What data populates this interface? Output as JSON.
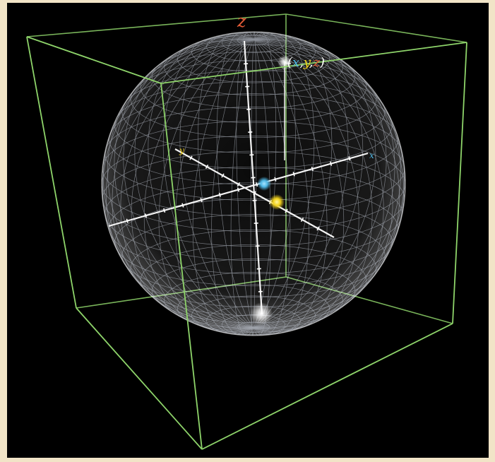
{
  "labels": {
    "z_axis": "z",
    "y_axis": "y",
    "x_axis": "x",
    "point": {
      "open": "(",
      "x": "x",
      "sep1": ",",
      "y": "y",
      "sep2": ",",
      "z": "z",
      "close": ")"
    }
  },
  "colors": {
    "background": "#000000",
    "border": "#f1e4c7",
    "cube_edges": "#8ed46a",
    "sphere_grid": "#e8f0ff",
    "axes": "#ffffff",
    "x_color": "#4fb8e6",
    "y_color": "#f2d21b",
    "z_color": "#e35b36"
  }
}
